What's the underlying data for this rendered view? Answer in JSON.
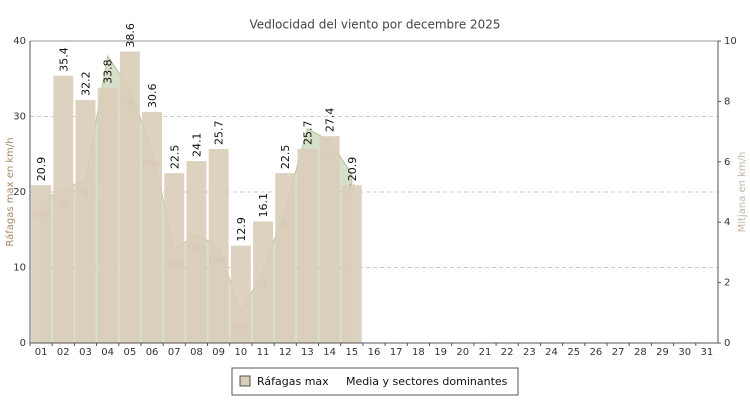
{
  "chart_data": {
    "type": "bar",
    "title": "Vedlocidad del viento por decembre 2025",
    "y_label": "Ráfagas max en km/h",
    "y2_label": "Mitjana en km/h",
    "categories": [
      "01",
      "02",
      "03",
      "04",
      "05",
      "06",
      "07",
      "08",
      "09",
      "10",
      "11",
      "12",
      "13",
      "14",
      "15",
      "16",
      "17",
      "18",
      "19",
      "20",
      "21",
      "22",
      "23",
      "24",
      "25",
      "26",
      "27",
      "28",
      "29",
      "30",
      "31"
    ],
    "series": [
      {
        "name": "Ráfagas max",
        "color": "#d9cdb9",
        "type": "bar",
        "values": [
          20.9,
          35.4,
          32.2,
          33.8,
          38.6,
          30.6,
          22.5,
          24.1,
          25.7,
          12.9,
          16.1,
          22.5,
          25.7,
          27.4,
          20.9,
          null,
          null,
          null,
          null,
          null,
          null,
          null,
          null,
          null,
          null,
          null,
          null,
          null,
          null,
          null,
          null
        ]
      },
      {
        "name": "Media y sectores dominantes",
        "color": "#b5c49c",
        "type": "area",
        "axis": "y2",
        "values": [
          4.7,
          5.1,
          5.4,
          9.5,
          8.4,
          6.4,
          3.1,
          3.6,
          3.2,
          1.0,
          2.4,
          4.4,
          7.1,
          6.7,
          5.6,
          null,
          null,
          null,
          null,
          null,
          null,
          null,
          null,
          null,
          null,
          null,
          null,
          null,
          null,
          null,
          null
        ],
        "sectors": [
          "NNE",
          "N",
          "N",
          null,
          "N",
          "NNE",
          "NNE",
          "NNE",
          "NNE",
          "NNE",
          "N",
          "N",
          null,
          "N",
          "N",
          null,
          null,
          null,
          null,
          null,
          null,
          null,
          null,
          null,
          null,
          null,
          null,
          null,
          null,
          null,
          null
        ]
      }
    ],
    "ylim": [
      0,
      40
    ],
    "yticks": [
      0,
      10,
      20,
      30,
      40
    ],
    "y2lim": [
      0,
      10
    ],
    "y2ticks": [
      0,
      2,
      4,
      6,
      8,
      10
    ],
    "grid": true
  }
}
